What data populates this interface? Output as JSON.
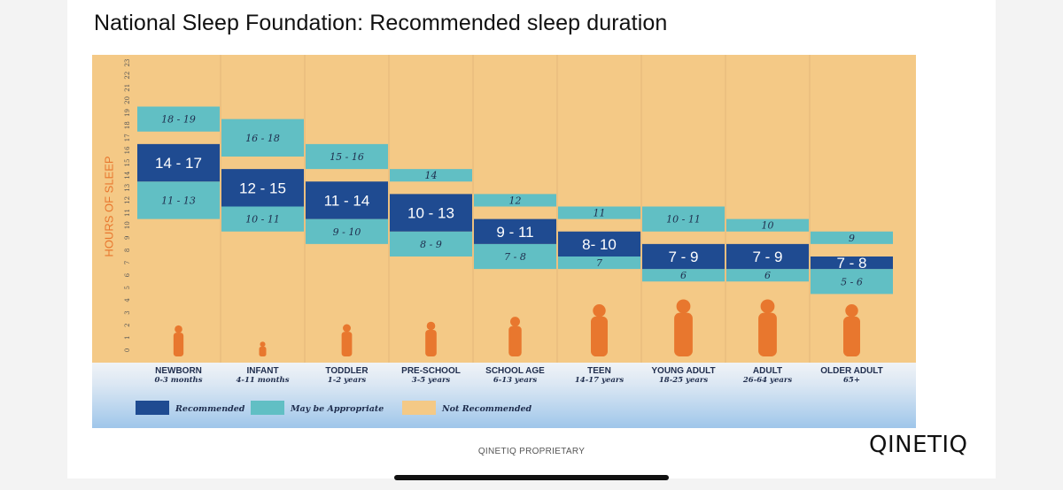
{
  "title": "National Sleep Foundation: Recommended sleep duration",
  "footer": "QINETIQ PROPRIETARY",
  "logo": "QINETIQ",
  "colors": {
    "recommended": "#1f4b91",
    "may_be_appropriate": "#61bfc4",
    "not_recommended": "#f4c986",
    "accent_orange": "#e8772e"
  },
  "chart_data": {
    "type": "bar",
    "ylabel": "HOURS OF SLEEP",
    "ylim": [
      0,
      24
    ],
    "yticks": [
      0,
      1,
      2,
      3,
      4,
      5,
      6,
      7,
      8,
      9,
      10,
      11,
      12,
      13,
      14,
      15,
      16,
      17,
      18,
      19,
      20,
      21,
      22,
      23,
      24
    ],
    "legend": [
      {
        "name": "Recommended",
        "color": "#1f4b91"
      },
      {
        "name": "May be Appropriate",
        "color": "#61bfc4"
      },
      {
        "name": "Not Recommended",
        "color": "#f4c986"
      }
    ],
    "legend_position": "bottom-left",
    "categories": [
      {
        "name": "NEWBORN",
        "age": "0-3 months",
        "rec": [
          14,
          17
        ],
        "rec_label": "14 - 17",
        "low": [
          11,
          13
        ],
        "low_label": "11 - 13",
        "high": [
          18,
          19
        ],
        "high_label": "18 - 19",
        "figure_height": 2.5
      },
      {
        "name": "INFANT",
        "age": "4-11 months",
        "rec": [
          12,
          15
        ],
        "rec_label": "12 - 15",
        "low": [
          10,
          11
        ],
        "low_label": "10 - 11",
        "high": [
          16,
          18
        ],
        "high_label": "16 - 18",
        "figure_height": 1.2
      },
      {
        "name": "TODDLER",
        "age": "1-2 years",
        "rec": [
          11,
          14
        ],
        "rec_label": "11 - 14",
        "low": [
          9,
          10
        ],
        "low_label": "9 - 10",
        "high": [
          15,
          16
        ],
        "high_label": "15 - 16",
        "figure_height": 2.6
      },
      {
        "name": "PRE-SCHOOL",
        "age": "3-5 years",
        "rec": [
          10,
          13
        ],
        "rec_label": "10 - 13",
        "low": [
          8,
          9
        ],
        "low_label": "8 - 9",
        "high": [
          14,
          14
        ],
        "high_label": "14",
        "figure_height": 2.8
      },
      {
        "name": "SCHOOL AGE",
        "age": "6-13 years",
        "rec": [
          9,
          11
        ],
        "rec_label": "9 - 11",
        "low": [
          7,
          8
        ],
        "low_label": "7 - 8",
        "high": [
          12,
          12
        ],
        "high_label": "12",
        "figure_height": 3.2
      },
      {
        "name": "TEEN",
        "age": "14-17 years",
        "rec": [
          8,
          10
        ],
        "rec_label": "8- 10",
        "low": [
          7,
          7
        ],
        "low_label": "7",
        "high": [
          11,
          11
        ],
        "high_label": "11",
        "figure_height": 4.2
      },
      {
        "name": "YOUNG ADULT",
        "age": "18-25 years",
        "rec": [
          7,
          9
        ],
        "rec_label": "7 - 9",
        "low": [
          6,
          6
        ],
        "low_label": "6",
        "high": [
          10,
          11
        ],
        "high_label": "10 - 11",
        "figure_height": 4.6
      },
      {
        "name": "ADULT",
        "age": "26-64 years",
        "rec": [
          7,
          9
        ],
        "rec_label": "7 - 9",
        "low": [
          6,
          6
        ],
        "low_label": "6",
        "high": [
          10,
          10
        ],
        "high_label": "10",
        "figure_height": 4.6
      },
      {
        "name": "OLDER ADULT",
        "age": "65+",
        "rec": [
          7,
          8
        ],
        "rec_label": "7 - 8",
        "low": [
          5,
          6
        ],
        "low_label": "5 - 6",
        "high": [
          9,
          9
        ],
        "high_label": "9",
        "figure_height": 4.2
      }
    ]
  }
}
